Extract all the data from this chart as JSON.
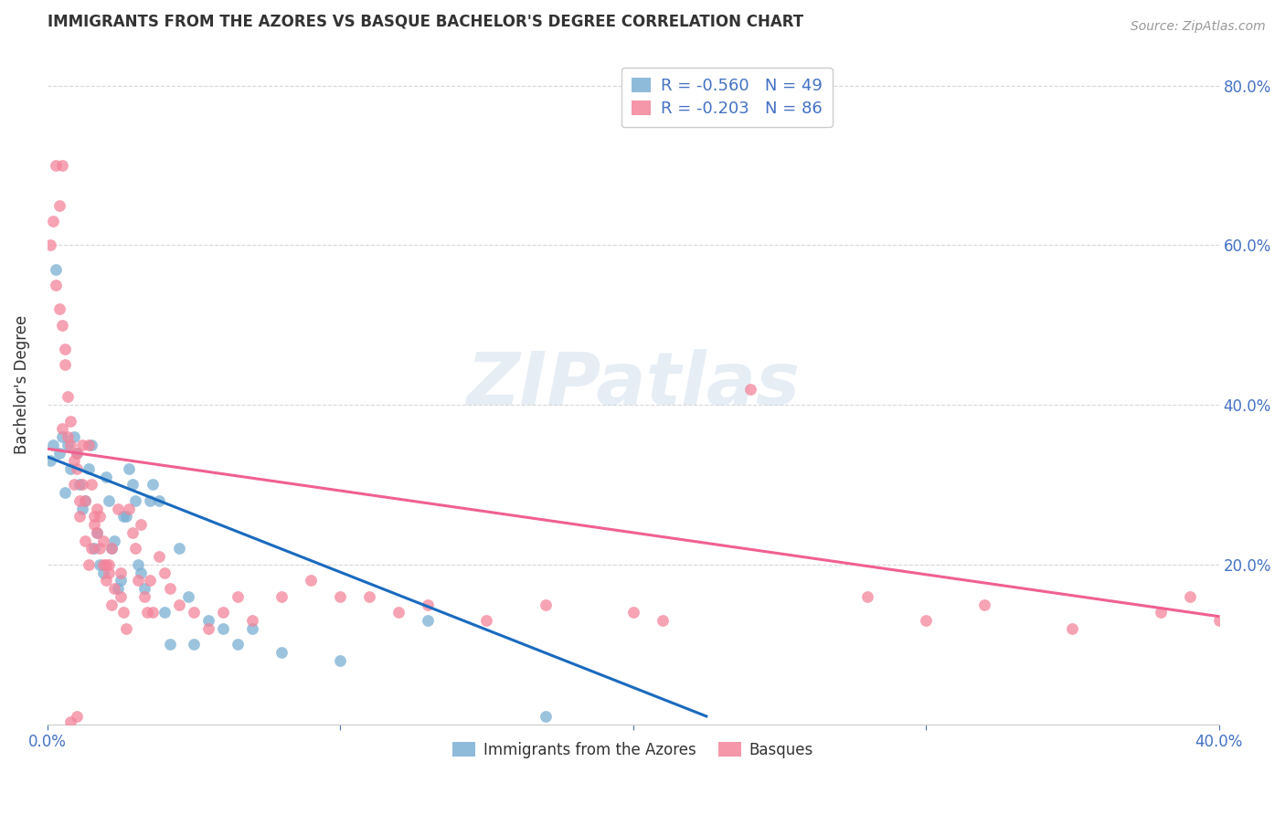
{
  "title": "IMMIGRANTS FROM THE AZORES VS BASQUE BACHELOR'S DEGREE CORRELATION CHART",
  "source": "Source: ZipAtlas.com",
  "ylabel": "Bachelor's Degree",
  "azores_color": "#7bafd4",
  "basque_color": "#f4849a",
  "legend_labels": [
    "Immigrants from the Azores",
    "Basques"
  ],
  "legend_r_n": [
    {
      "r": "R = -0.560",
      "n": "N = 49",
      "color": "#a8c4e0"
    },
    {
      "r": "R = -0.203",
      "n": "N = 86",
      "color": "#f4a8b8"
    }
  ],
  "azores_scatter_x": [
    0.001,
    0.002,
    0.003,
    0.004,
    0.005,
    0.006,
    0.007,
    0.008,
    0.009,
    0.01,
    0.011,
    0.012,
    0.013,
    0.014,
    0.015,
    0.016,
    0.017,
    0.018,
    0.019,
    0.02,
    0.021,
    0.022,
    0.023,
    0.024,
    0.025,
    0.026,
    0.027,
    0.028,
    0.029,
    0.03,
    0.031,
    0.032,
    0.033,
    0.035,
    0.036,
    0.038,
    0.04,
    0.042,
    0.045,
    0.048,
    0.05,
    0.055,
    0.06,
    0.065,
    0.07,
    0.08,
    0.1,
    0.13,
    0.17
  ],
  "azores_scatter_y": [
    0.33,
    0.35,
    0.57,
    0.34,
    0.36,
    0.29,
    0.35,
    0.32,
    0.36,
    0.34,
    0.3,
    0.27,
    0.28,
    0.32,
    0.35,
    0.22,
    0.24,
    0.2,
    0.19,
    0.31,
    0.28,
    0.22,
    0.23,
    0.17,
    0.18,
    0.26,
    0.26,
    0.32,
    0.3,
    0.28,
    0.2,
    0.19,
    0.17,
    0.28,
    0.3,
    0.28,
    0.14,
    0.1,
    0.22,
    0.16,
    0.1,
    0.13,
    0.12,
    0.1,
    0.12,
    0.09,
    0.08,
    0.13,
    0.01
  ],
  "basque_scatter_x": [
    0.001,
    0.002,
    0.003,
    0.003,
    0.004,
    0.004,
    0.005,
    0.005,
    0.006,
    0.006,
    0.007,
    0.007,
    0.008,
    0.008,
    0.009,
    0.009,
    0.01,
    0.01,
    0.011,
    0.011,
    0.012,
    0.012,
    0.013,
    0.013,
    0.014,
    0.014,
    0.015,
    0.015,
    0.016,
    0.016,
    0.017,
    0.017,
    0.018,
    0.018,
    0.019,
    0.019,
    0.02,
    0.02,
    0.021,
    0.021,
    0.022,
    0.022,
    0.023,
    0.024,
    0.025,
    0.025,
    0.026,
    0.027,
    0.028,
    0.029,
    0.03,
    0.031,
    0.032,
    0.033,
    0.034,
    0.035,
    0.036,
    0.038,
    0.04,
    0.042,
    0.045,
    0.05,
    0.055,
    0.06,
    0.065,
    0.07,
    0.08,
    0.09,
    0.1,
    0.11,
    0.12,
    0.13,
    0.15,
    0.17,
    0.2,
    0.21,
    0.24,
    0.28,
    0.3,
    0.32,
    0.35,
    0.38,
    0.39,
    0.4,
    0.005,
    0.008,
    0.01
  ],
  "basque_scatter_y": [
    0.6,
    0.63,
    0.55,
    0.7,
    0.52,
    0.65,
    0.37,
    0.5,
    0.45,
    0.47,
    0.41,
    0.36,
    0.38,
    0.35,
    0.33,
    0.3,
    0.32,
    0.34,
    0.28,
    0.26,
    0.35,
    0.3,
    0.28,
    0.23,
    0.35,
    0.2,
    0.22,
    0.3,
    0.25,
    0.26,
    0.24,
    0.27,
    0.22,
    0.26,
    0.23,
    0.2,
    0.2,
    0.18,
    0.19,
    0.2,
    0.22,
    0.15,
    0.17,
    0.27,
    0.16,
    0.19,
    0.14,
    0.12,
    0.27,
    0.24,
    0.22,
    0.18,
    0.25,
    0.16,
    0.14,
    0.18,
    0.14,
    0.21,
    0.19,
    0.17,
    0.15,
    0.14,
    0.12,
    0.14,
    0.16,
    0.13,
    0.16,
    0.18,
    0.16,
    0.16,
    0.14,
    0.15,
    0.13,
    0.15,
    0.14,
    0.13,
    0.42,
    0.16,
    0.13,
    0.15,
    0.12,
    0.14,
    0.16,
    0.13,
    0.7,
    0.003,
    0.01
  ],
  "azores_line_x": [
    0.0,
    0.225
  ],
  "azores_line_y": [
    0.335,
    0.01
  ],
  "basque_line_x": [
    0.0,
    0.4
  ],
  "basque_line_y": [
    0.345,
    0.135
  ],
  "xlim": [
    0.0,
    0.4
  ],
  "ylim": [
    0.0,
    0.85
  ],
  "background_color": "#ffffff",
  "watermark_text": "ZIPatlas",
  "title_fontsize": 12,
  "label_color_right": "#4472c4",
  "grid_color": "#d3d3d3",
  "label_color_text": "#333333"
}
